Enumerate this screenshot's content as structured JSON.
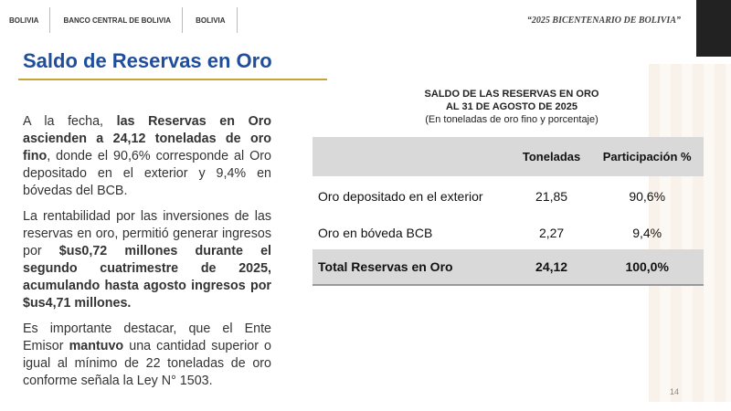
{
  "header": {
    "logos": [
      "BOLIVIA",
      "BANCO CENTRAL DE BOLIVIA",
      "BOLIVIA"
    ],
    "motto": "“2025 BICENTENARIO DE BOLIVIA”"
  },
  "title": "Saldo de Reservas en Oro",
  "body": {
    "paragraphs": [
      [
        {
          "text": "A la fecha, ",
          "bold": false
        },
        {
          "text": "las Reservas en Oro ascienden a 24,12 toneladas de oro fino",
          "bold": true
        },
        {
          "text": ", donde el 90,6% corresponde al Oro depositado en el exterior y 9,4% en bóvedas del BCB.",
          "bold": false
        }
      ],
      [
        {
          "text": "La rentabilidad por las inversiones de las reservas en oro, permitió generar ingresos por ",
          "bold": false
        },
        {
          "text": "$us0,72 millones durante el segundo cuatrimestre de 2025, acumulando hasta agosto ingresos por $us4,71 millones.",
          "bold": true
        }
      ],
      [
        {
          "text": "Es importante destacar, que el Ente Emisor ",
          "bold": false
        },
        {
          "text": "mantuvo",
          "bold": true
        },
        {
          "text": " una cantidad superior o igual al mínimo de 22 toneladas de oro conforme señala la Ley N° 1503.",
          "bold": false
        }
      ]
    ]
  },
  "table": {
    "title": [
      "SALDO DE LAS RESERVAS EN ORO",
      "AL 31 DE AGOSTO DE 2025"
    ],
    "subtitle": "(En toneladas de oro fino y porcentaje)",
    "header": [
      "Toneladas",
      "Participación %"
    ],
    "rows": [
      [
        "Oro depositado en el exterior",
        "21,85",
        "90,6%"
      ],
      [
        "Oro en bóveda BCB",
        "2,27",
        "9,4%"
      ],
      [
        "Total Reservas en Oro",
        "24,12",
        "100,0%"
      ]
    ]
  },
  "page_number": "14"
}
